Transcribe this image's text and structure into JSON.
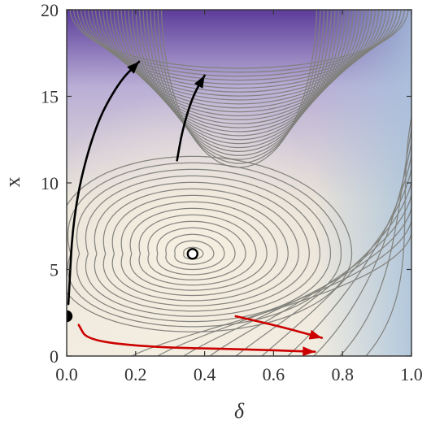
{
  "chart_data": {
    "type": "contour",
    "title": "",
    "xlabel": "δ",
    "ylabel": "x",
    "xlim": [
      0,
      1
    ],
    "ylim": [
      0,
      20
    ],
    "x_ticks": [
      0.0,
      0.2,
      0.4,
      0.6,
      0.8,
      1.0
    ],
    "x_tick_labels": [
      "0.0",
      "0.2",
      "0.4",
      "0.6",
      "0.8",
      "1.0"
    ],
    "y_ticks": [
      0,
      5,
      10,
      15,
      20
    ],
    "y_tick_labels": [
      "0",
      "5",
      "10",
      "15",
      "20"
    ],
    "grid": false,
    "color_low": "#5b3c9a",
    "color_mid": "#f0ebdd",
    "color_high": "#f5efe0",
    "color_edge": "#a8c2dc",
    "contour_levels": 40,
    "equilibria": [
      {
        "name": "unstable",
        "delta": 0.365,
        "x": 5.9,
        "style": "open-circle"
      },
      {
        "name": "stable",
        "delta": 0.0,
        "x": 2.3,
        "style": "filled-circle"
      }
    ],
    "trajectories": [
      {
        "color": "#000000",
        "points": [
          [
            0.005,
            3.0
          ],
          [
            0.02,
            8.5
          ],
          [
            0.08,
            13.2
          ],
          [
            0.15,
            15.8
          ],
          [
            0.21,
            17.0
          ]
        ]
      },
      {
        "color": "#000000",
        "points": [
          [
            0.32,
            11.3
          ],
          [
            0.335,
            13.0
          ],
          [
            0.365,
            15.0
          ],
          [
            0.4,
            16.2
          ]
        ]
      },
      {
        "color": "#cc0000",
        "points": [
          [
            0.035,
            1.8
          ],
          [
            0.06,
            0.9
          ],
          [
            0.25,
            0.5
          ],
          [
            0.5,
            0.4
          ],
          [
            0.72,
            0.25
          ]
        ]
      },
      {
        "color": "#cc0000",
        "points": [
          [
            0.49,
            2.3
          ],
          [
            0.62,
            1.7
          ],
          [
            0.74,
            1.05
          ]
        ]
      }
    ]
  }
}
